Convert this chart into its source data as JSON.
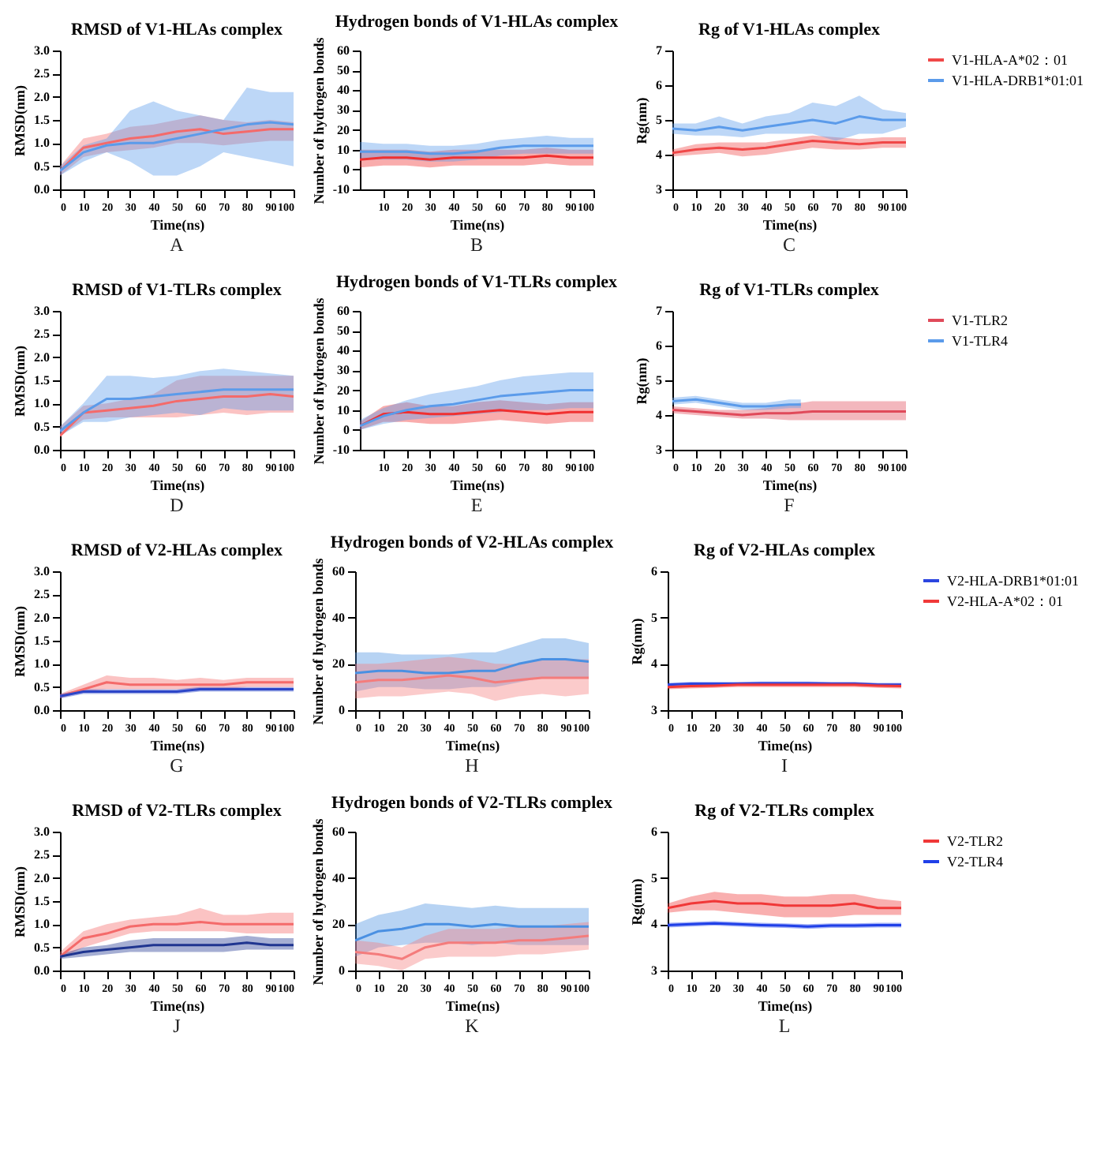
{
  "chart_data": [
    {
      "type": "line",
      "title": "RMSD of V1-HLAs complex",
      "xlabel": "Time(ns)",
      "ylabel": "RMSD(nm)",
      "annotations": [
        "A"
      ],
      "x": [
        0,
        10,
        20,
        30,
        40,
        50,
        60,
        70,
        80,
        90,
        100
      ],
      "xlim": [
        0,
        100
      ],
      "xticks": [
        0,
        10,
        20,
        30,
        40,
        50,
        60,
        70,
        80,
        90,
        100
      ],
      "ylim": [
        0,
        3
      ],
      "yticks": [
        {
          "value": 0,
          "label": "0.0"
        },
        0.5,
        {
          "value": 1,
          "label": "1.0"
        },
        1.5,
        {
          "value": 2,
          "label": "2.0"
        },
        2.5,
        {
          "value": 3,
          "label": "3.0"
        }
      ],
      "series": [
        {
          "color": "#f46a6a",
          "values": [
            0.4,
            0.9,
            1.0,
            1.1,
            1.15,
            1.25,
            1.3,
            1.2,
            1.25,
            1.3,
            1.3
          ],
          "lower": [
            0.3,
            0.7,
            0.8,
            0.85,
            0.9,
            1.0,
            1.0,
            0.95,
            1.0,
            1.05,
            1.05
          ],
          "upper": [
            0.5,
            1.1,
            1.2,
            1.35,
            1.4,
            1.5,
            1.6,
            1.5,
            1.45,
            1.5,
            1.45
          ]
        },
        {
          "color": "#5b9bea",
          "values": [
            0.4,
            0.8,
            0.95,
            1.0,
            1.0,
            1.1,
            1.2,
            1.3,
            1.4,
            1.45,
            1.4
          ],
          "lower": [
            0.3,
            0.6,
            0.8,
            0.6,
            0.3,
            0.3,
            0.5,
            0.8,
            0.7,
            0.6,
            0.5
          ],
          "upper": [
            0.5,
            0.95,
            1.1,
            1.7,
            1.9,
            1.7,
            1.6,
            1.5,
            2.2,
            2.1,
            2.1
          ]
        }
      ]
    },
    {
      "type": "line",
      "title": "Hydrogen bonds of V1-HLAs complex",
      "xlabel": "Time(ns)",
      "ylabel": "Number of hydrogen bonds",
      "annotations": [
        "B"
      ],
      "x": [
        0,
        10,
        20,
        30,
        40,
        50,
        60,
        70,
        80,
        90,
        100
      ],
      "xlim": [
        0,
        100
      ],
      "xticks": [
        10,
        20,
        30,
        40,
        50,
        60,
        70,
        80,
        90,
        100
      ],
      "ylim": [
        -10,
        60
      ],
      "yticks": [
        -10,
        0,
        10,
        20,
        30,
        40,
        50,
        60
      ],
      "series": [
        {
          "color": "#f03030",
          "values": [
            5,
            6,
            6,
            5,
            6,
            6,
            6,
            6,
            7,
            6,
            6
          ],
          "lower": [
            1,
            2,
            2,
            1,
            2,
            2,
            2,
            2,
            3,
            2,
            2
          ],
          "upper": [
            10,
            10,
            10,
            9,
            10,
            10,
            10,
            10,
            11,
            10,
            10
          ]
        },
        {
          "color": "#5b9bea",
          "values": [
            9,
            9,
            9,
            8,
            8,
            9,
            11,
            12,
            12,
            12,
            12
          ],
          "lower": [
            5,
            5,
            5,
            4,
            4,
            5,
            7,
            8,
            8,
            8,
            8
          ],
          "upper": [
            14,
            13,
            13,
            12,
            12,
            13,
            15,
            16,
            17,
            16,
            16
          ]
        }
      ]
    },
    {
      "type": "line",
      "title": "Rg of V1-HLAs complex",
      "xlabel": "Time(ns)",
      "ylabel": "Rg(nm)",
      "annotations": [
        "C"
      ],
      "legend": "right",
      "x": [
        0,
        10,
        20,
        30,
        40,
        50,
        60,
        70,
        80,
        90,
        100
      ],
      "xlim": [
        0,
        100
      ],
      "xticks": [
        0,
        10,
        20,
        30,
        40,
        50,
        60,
        70,
        80,
        90,
        100
      ],
      "ylim": [
        3,
        7
      ],
      "yticks": [
        3,
        4,
        5,
        6,
        7
      ],
      "series": [
        {
          "name": "V1-HLA-A*02：01",
          "color": "#f04848",
          "values": [
            4.05,
            4.15,
            4.2,
            4.15,
            4.2,
            4.3,
            4.4,
            4.35,
            4.3,
            4.35,
            4.35
          ],
          "lower": [
            3.95,
            4.0,
            4.05,
            3.95,
            4.0,
            4.1,
            4.2,
            4.15,
            4.15,
            4.2,
            4.2
          ],
          "upper": [
            4.15,
            4.3,
            4.35,
            4.35,
            4.35,
            4.45,
            4.55,
            4.5,
            4.45,
            4.5,
            4.5
          ]
        },
        {
          "name": "V1-HLA-DRB1*01:01",
          "color": "#5b9bea",
          "values": [
            4.75,
            4.7,
            4.8,
            4.7,
            4.8,
            4.9,
            5.0,
            4.9,
            5.1,
            5.0,
            5.0
          ],
          "lower": [
            4.6,
            4.55,
            4.55,
            4.5,
            4.6,
            4.6,
            4.6,
            4.4,
            4.6,
            4.6,
            4.8
          ],
          "upper": [
            4.9,
            4.9,
            5.1,
            4.9,
            5.1,
            5.2,
            5.5,
            5.4,
            5.7,
            5.3,
            5.2
          ]
        }
      ]
    },
    {
      "type": "line",
      "title": "RMSD of V1-TLRs complex",
      "xlabel": "Time(ns)",
      "ylabel": "RMSD(nm)",
      "annotations": [
        "D"
      ],
      "x": [
        0,
        10,
        20,
        30,
        40,
        50,
        60,
        70,
        80,
        90,
        100
      ],
      "xlim": [
        0,
        100
      ],
      "xticks": [
        0,
        10,
        20,
        30,
        40,
        50,
        60,
        70,
        80,
        90,
        100
      ],
      "ylim": [
        0,
        3
      ],
      "yticks": [
        {
          "value": 0,
          "label": "0.0"
        },
        0.5,
        {
          "value": 1,
          "label": "1.0"
        },
        1.5,
        {
          "value": 2,
          "label": "2.0"
        },
        2.5,
        {
          "value": 3,
          "label": "3.0"
        }
      ],
      "series": [
        {
          "color": "#f46a6a",
          "values": [
            0.3,
            0.8,
            0.85,
            0.9,
            0.95,
            1.05,
            1.1,
            1.15,
            1.15,
            1.2,
            1.15
          ],
          "lower": [
            0.3,
            0.65,
            0.7,
            0.7,
            0.7,
            0.7,
            0.75,
            0.8,
            0.75,
            0.8,
            0.8
          ],
          "upper": [
            0.5,
            0.95,
            1.0,
            1.1,
            1.2,
            1.5,
            1.6,
            1.6,
            1.6,
            1.6,
            1.6
          ]
        },
        {
          "color": "#5b9bea",
          "values": [
            0.4,
            0.8,
            1.1,
            1.1,
            1.15,
            1.2,
            1.25,
            1.3,
            1.3,
            1.3,
            1.3
          ],
          "lower": [
            0.3,
            0.6,
            0.6,
            0.7,
            0.75,
            0.8,
            0.75,
            0.9,
            0.85,
            0.85,
            0.85
          ],
          "upper": [
            0.5,
            1.0,
            1.6,
            1.6,
            1.55,
            1.6,
            1.7,
            1.75,
            1.7,
            1.65,
            1.6
          ]
        }
      ]
    },
    {
      "type": "line",
      "title": "Hydrogen bonds of V1-TLRs complex",
      "xlabel": "Time(ns)",
      "ylabel": "Number of hydrogen bonds",
      "annotations": [
        "E"
      ],
      "x": [
        0,
        10,
        20,
        30,
        40,
        50,
        60,
        70,
        80,
        90,
        100
      ],
      "xlim": [
        0,
        100
      ],
      "xticks": [
        10,
        20,
        30,
        40,
        50,
        60,
        70,
        80,
        90,
        100
      ],
      "ylim": [
        -10,
        60
      ],
      "yticks": [
        -10,
        0,
        10,
        20,
        30,
        40,
        50,
        60
      ],
      "series": [
        {
          "color": "#f03030",
          "values": [
            2,
            8,
            9,
            8,
            8,
            9,
            10,
            9,
            8,
            9,
            9
          ],
          "lower": [
            0,
            4,
            4,
            3,
            3,
            4,
            5,
            4,
            3,
            4,
            4
          ],
          "upper": [
            4,
            12,
            14,
            12,
            12,
            14,
            15,
            14,
            13,
            14,
            14
          ]
        },
        {
          "color": "#5b9bea",
          "values": [
            2,
            7,
            10,
            12,
            13,
            15,
            17,
            18,
            19,
            20,
            20
          ],
          "lower": [
            0,
            3,
            5,
            6,
            7,
            8,
            9,
            10,
            10,
            11,
            11
          ],
          "upper": [
            5,
            11,
            15,
            18,
            20,
            22,
            25,
            27,
            28,
            29,
            29
          ]
        }
      ]
    },
    {
      "type": "line",
      "title": "Rg of V1-TLRs complex",
      "xlabel": "Time(ns)",
      "ylabel": "Rg(nm)",
      "annotations": [
        "F"
      ],
      "legend": "right",
      "x": [
        0,
        10,
        20,
        30,
        40,
        50,
        60,
        70,
        80,
        90,
        100
      ],
      "xlim": [
        0,
        100
      ],
      "xticks": [
        0,
        10,
        20,
        30,
        40,
        50,
        60,
        70,
        80,
        90,
        100
      ],
      "ylim": [
        3,
        7
      ],
      "yticks": [
        3,
        4,
        5,
        6,
        7
      ],
      "series": [
        {
          "name": "V1-TLR2",
          "color": "#e04a5a",
          "values": [
            4.15,
            4.1,
            4.05,
            4.0,
            4.05,
            4.05,
            4.1,
            4.1,
            4.1,
            4.1,
            4.1
          ],
          "lower": [
            4.05,
            4.0,
            3.95,
            3.9,
            3.9,
            3.85,
            3.85,
            3.85,
            3.85,
            3.85,
            3.85
          ],
          "upper": [
            4.25,
            4.2,
            4.15,
            4.15,
            4.2,
            4.3,
            4.4,
            4.4,
            4.4,
            4.4,
            4.4
          ]
        },
        {
          "name": "V1-TLR4",
          "color": "#5b9bea",
          "x": [
            0,
            10,
            20,
            30,
            40,
            50,
            55
          ],
          "values": [
            4.4,
            4.45,
            4.35,
            4.25,
            4.25,
            4.3,
            4.3
          ],
          "lower": [
            4.3,
            4.35,
            4.25,
            4.15,
            4.15,
            4.2,
            4.2
          ],
          "upper": [
            4.5,
            4.55,
            4.45,
            4.35,
            4.35,
            4.45,
            4.45
          ]
        }
      ]
    },
    {
      "type": "line",
      "title": "RMSD of V2-HLAs complex",
      "xlabel": "Time(ns)",
      "ylabel": "RMSD(nm)",
      "annotations": [
        "G"
      ],
      "x": [
        0,
        10,
        20,
        30,
        40,
        50,
        60,
        70,
        80,
        90,
        100
      ],
      "xlim": [
        0,
        100
      ],
      "xticks": [
        0,
        10,
        20,
        30,
        40,
        50,
        60,
        70,
        80,
        90,
        100
      ],
      "ylim": [
        0,
        3
      ],
      "yticks": [
        {
          "value": 0,
          "label": "0.0"
        },
        0.5,
        {
          "value": 1,
          "label": "1.0"
        },
        1.5,
        {
          "value": 2,
          "label": "2.0"
        },
        2.5,
        {
          "value": 3,
          "label": "3.0"
        }
      ],
      "series": [
        {
          "color": "#f46a6a",
          "values": [
            0.3,
            0.45,
            0.6,
            0.55,
            0.55,
            0.55,
            0.55,
            0.55,
            0.6,
            0.6,
            0.6
          ],
          "lower": [
            0.25,
            0.4,
            0.45,
            0.45,
            0.45,
            0.45,
            0.45,
            0.45,
            0.5,
            0.5,
            0.5
          ],
          "upper": [
            0.35,
            0.55,
            0.75,
            0.7,
            0.7,
            0.65,
            0.7,
            0.65,
            0.7,
            0.7,
            0.7
          ]
        },
        {
          "color": "#2b45c8",
          "values": [
            0.3,
            0.4,
            0.4,
            0.4,
            0.4,
            0.4,
            0.45,
            0.45,
            0.45,
            0.45,
            0.45
          ],
          "lower": [
            0.25,
            0.35,
            0.35,
            0.35,
            0.35,
            0.35,
            0.4,
            0.4,
            0.4,
            0.4,
            0.4
          ],
          "upper": [
            0.35,
            0.45,
            0.45,
            0.45,
            0.45,
            0.45,
            0.5,
            0.5,
            0.5,
            0.5,
            0.5
          ]
        }
      ]
    },
    {
      "type": "line",
      "title": "Hydrogen bonds of V2-HLAs complex",
      "xlabel": "Time(ns)",
      "ylabel": "Number of hydrogen bonds",
      "annotations": [
        "H"
      ],
      "x": [
        0,
        10,
        20,
        30,
        40,
        50,
        60,
        70,
        80,
        90,
        100
      ],
      "xlim": [
        0,
        100
      ],
      "xticks": [
        0,
        10,
        20,
        30,
        40,
        50,
        60,
        70,
        80,
        90,
        100
      ],
      "ylim": [
        0,
        60
      ],
      "yticks": [
        0,
        20,
        40,
        60
      ],
      "series": [
        {
          "color": "#4a90e2",
          "values": [
            16,
            17,
            17,
            16,
            16,
            17,
            17,
            20,
            22,
            22,
            21
          ],
          "lower": [
            8,
            10,
            10,
            9,
            9,
            10,
            10,
            12,
            14,
            14,
            14
          ],
          "upper": [
            25,
            25,
            24,
            24,
            24,
            25,
            25,
            28,
            31,
            31,
            29
          ]
        },
        {
          "color": "#f47c7c",
          "values": [
            12,
            13,
            13,
            14,
            15,
            14,
            12,
            13,
            14,
            14,
            14
          ],
          "lower": [
            5,
            6,
            6,
            7,
            8,
            7,
            4,
            6,
            7,
            6,
            7
          ],
          "upper": [
            20,
            20,
            21,
            22,
            23,
            22,
            20,
            20,
            22,
            22,
            22
          ]
        }
      ]
    },
    {
      "type": "line",
      "title": "Rg of V2-HLAs complex",
      "xlabel": "Time(ns)",
      "ylabel": "Rg(nm)",
      "annotations": [
        "I"
      ],
      "legend": "right",
      "x": [
        0,
        10,
        20,
        30,
        40,
        50,
        60,
        70,
        80,
        90,
        100
      ],
      "xlim": [
        0,
        100
      ],
      "xticks": [
        0,
        10,
        20,
        30,
        40,
        50,
        60,
        70,
        80,
        90,
        100
      ],
      "ylim": [
        3,
        6
      ],
      "yticks": [
        3,
        4,
        5,
        6
      ],
      "series": [
        {
          "name": "V2-HLA-DRB1*01:01",
          "color": "#2b45e0",
          "values": [
            3.55,
            3.57,
            3.57,
            3.57,
            3.58,
            3.58,
            3.58,
            3.57,
            3.57,
            3.55,
            3.55
          ],
          "lower": [
            3.51,
            3.53,
            3.53,
            3.53,
            3.54,
            3.54,
            3.54,
            3.53,
            3.53,
            3.51,
            3.51
          ],
          "upper": [
            3.59,
            3.61,
            3.61,
            3.61,
            3.62,
            3.62,
            3.62,
            3.61,
            3.61,
            3.59,
            3.59
          ]
        },
        {
          "name": "V2-HLA-A*02：01",
          "color": "#f03838",
          "values": [
            3.5,
            3.52,
            3.53,
            3.55,
            3.55,
            3.55,
            3.55,
            3.55,
            3.55,
            3.53,
            3.52
          ],
          "lower": [
            3.45,
            3.47,
            3.48,
            3.5,
            3.5,
            3.5,
            3.5,
            3.5,
            3.5,
            3.48,
            3.47
          ],
          "upper": [
            3.55,
            3.57,
            3.58,
            3.6,
            3.6,
            3.6,
            3.6,
            3.6,
            3.6,
            3.58,
            3.57
          ]
        }
      ]
    },
    {
      "type": "line",
      "title": "RMSD of V2-TLRs complex",
      "xlabel": "Time(ns)",
      "ylabel": "RMSD(nm)",
      "annotations": [
        "J"
      ],
      "x": [
        0,
        10,
        20,
        30,
        40,
        50,
        60,
        70,
        80,
        90,
        100
      ],
      "xlim": [
        0,
        100
      ],
      "xticks": [
        0,
        10,
        20,
        30,
        40,
        50,
        60,
        70,
        80,
        90,
        100
      ],
      "ylim": [
        0,
        3
      ],
      "yticks": [
        {
          "value": 0,
          "label": "0.0"
        },
        0.5,
        {
          "value": 1,
          "label": "1.0"
        },
        1.5,
        {
          "value": 2,
          "label": "2.0"
        },
        2.5,
        {
          "value": 3,
          "label": "3.0"
        }
      ],
      "series": [
        {
          "color": "#f46a6a",
          "values": [
            0.3,
            0.7,
            0.8,
            0.95,
            1.0,
            1.0,
            1.05,
            1.0,
            1.0,
            1.0,
            1.0
          ],
          "lower": [
            0.25,
            0.5,
            0.65,
            0.8,
            0.85,
            0.85,
            0.85,
            0.85,
            0.8,
            0.8,
            0.8
          ],
          "upper": [
            0.4,
            0.85,
            1.0,
            1.1,
            1.15,
            1.2,
            1.35,
            1.2,
            1.2,
            1.25,
            1.25
          ]
        },
        {
          "color": "#1f3590",
          "values": [
            0.3,
            0.4,
            0.45,
            0.5,
            0.55,
            0.55,
            0.55,
            0.55,
            0.6,
            0.55,
            0.55
          ],
          "lower": [
            0.25,
            0.3,
            0.35,
            0.4,
            0.4,
            0.4,
            0.4,
            0.4,
            0.45,
            0.45,
            0.45
          ],
          "upper": [
            0.35,
            0.5,
            0.55,
            0.65,
            0.7,
            0.7,
            0.7,
            0.7,
            0.75,
            0.7,
            0.7
          ]
        }
      ]
    },
    {
      "type": "line",
      "title": "Hydrogen bonds of V2-TLRs complex",
      "xlabel": "Time(ns)",
      "ylabel": "Number of hydrogen bonds",
      "annotations": [
        "K"
      ],
      "x": [
        0,
        10,
        20,
        30,
        40,
        50,
        60,
        70,
        80,
        90,
        100
      ],
      "xlim": [
        0,
        100
      ],
      "xticks": [
        0,
        10,
        20,
        30,
        40,
        50,
        60,
        70,
        80,
        90,
        100
      ],
      "ylim": [
        0,
        60
      ],
      "yticks": [
        0,
        20,
        40,
        60
      ],
      "series": [
        {
          "color": "#4a90e2",
          "values": [
            13,
            17,
            18,
            20,
            20,
            19,
            20,
            19,
            19,
            19,
            19
          ],
          "lower": [
            6,
            10,
            11,
            12,
            12,
            11,
            12,
            11,
            11,
            11,
            11
          ],
          "upper": [
            20,
            24,
            26,
            29,
            28,
            27,
            28,
            27,
            27,
            27,
            27
          ]
        },
        {
          "color": "#f47c7c",
          "values": [
            8,
            7,
            5,
            10,
            12,
            12,
            12,
            13,
            13,
            14,
            15
          ],
          "lower": [
            3,
            2,
            0,
            5,
            6,
            6,
            6,
            7,
            7,
            8,
            9
          ],
          "upper": [
            13,
            12,
            10,
            15,
            18,
            18,
            18,
            19,
            19,
            20,
            21
          ]
        }
      ]
    },
    {
      "type": "line",
      "title": "Rg of V2-TLRs complex",
      "xlabel": "Time(ns)",
      "ylabel": "Rg(nm)",
      "annotations": [
        "L"
      ],
      "legend": "right",
      "x": [
        0,
        10,
        20,
        30,
        40,
        50,
        60,
        70,
        80,
        90,
        100
      ],
      "xlim": [
        0,
        100
      ],
      "xticks": [
        0,
        10,
        20,
        30,
        40,
        50,
        60,
        70,
        80,
        90,
        100
      ],
      "ylim": [
        3,
        6
      ],
      "yticks": [
        3,
        4,
        5,
        6
      ],
      "series": [
        {
          "name": "V2-TLR2",
          "color": "#f03838",
          "values": [
            4.35,
            4.45,
            4.5,
            4.45,
            4.45,
            4.4,
            4.4,
            4.4,
            4.45,
            4.35,
            4.35
          ],
          "lower": [
            4.25,
            4.3,
            4.3,
            4.25,
            4.2,
            4.15,
            4.15,
            4.15,
            4.2,
            4.2,
            4.2
          ],
          "upper": [
            4.45,
            4.6,
            4.7,
            4.65,
            4.65,
            4.6,
            4.6,
            4.65,
            4.65,
            4.55,
            4.5
          ]
        },
        {
          "name": "V2-TLR4",
          "color": "#2040e8",
          "values": [
            3.98,
            4.0,
            4.02,
            4.0,
            3.98,
            3.97,
            3.95,
            3.97,
            3.97,
            3.98,
            3.98
          ],
          "lower": [
            3.93,
            3.95,
            3.97,
            3.95,
            3.93,
            3.92,
            3.9,
            3.92,
            3.92,
            3.93,
            3.93
          ],
          "upper": [
            4.03,
            4.05,
            4.07,
            4.05,
            4.03,
            4.02,
            4.0,
            4.02,
            4.02,
            4.03,
            4.03
          ]
        }
      ]
    }
  ]
}
